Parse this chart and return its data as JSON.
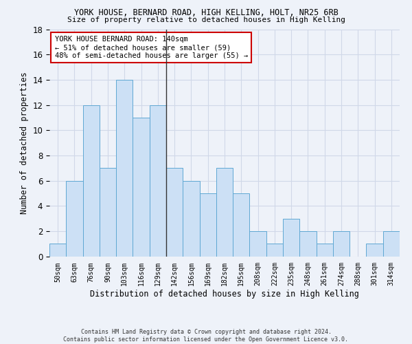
{
  "title1": "YORK HOUSE, BERNARD ROAD, HIGH KELLING, HOLT, NR25 6RB",
  "title2": "Size of property relative to detached houses in High Kelling",
  "xlabel": "Distribution of detached houses by size in High Kelling",
  "ylabel": "Number of detached properties",
  "bin_labels": [
    "50sqm",
    "63sqm",
    "76sqm",
    "90sqm",
    "103sqm",
    "116sqm",
    "129sqm",
    "142sqm",
    "156sqm",
    "169sqm",
    "182sqm",
    "195sqm",
    "208sqm",
    "222sqm",
    "235sqm",
    "248sqm",
    "261sqm",
    "274sqm",
    "288sqm",
    "301sqm",
    "314sqm"
  ],
  "bar_heights": [
    1,
    6,
    12,
    7,
    14,
    11,
    12,
    7,
    6,
    5,
    7,
    5,
    2,
    1,
    3,
    2,
    1,
    2,
    0,
    1,
    2
  ],
  "bar_color": "#cce0f5",
  "bar_edge_color": "#5fa8d3",
  "grid_color": "#d0d8e8",
  "vline_color": "#333333",
  "annotation_text": "YORK HOUSE BERNARD ROAD: 140sqm\n← 51% of detached houses are smaller (59)\n48% of semi-detached houses are larger (55) →",
  "annotation_box_color": "#ffffff",
  "annotation_edge_color": "#cc0000",
  "ylim": [
    0,
    18
  ],
  "yticks": [
    0,
    2,
    4,
    6,
    8,
    10,
    12,
    14,
    16,
    18
  ],
  "footer": "Contains HM Land Registry data © Crown copyright and database right 2024.\nContains public sector information licensed under the Open Government Licence v3.0.",
  "bg_color": "#eef2f9"
}
